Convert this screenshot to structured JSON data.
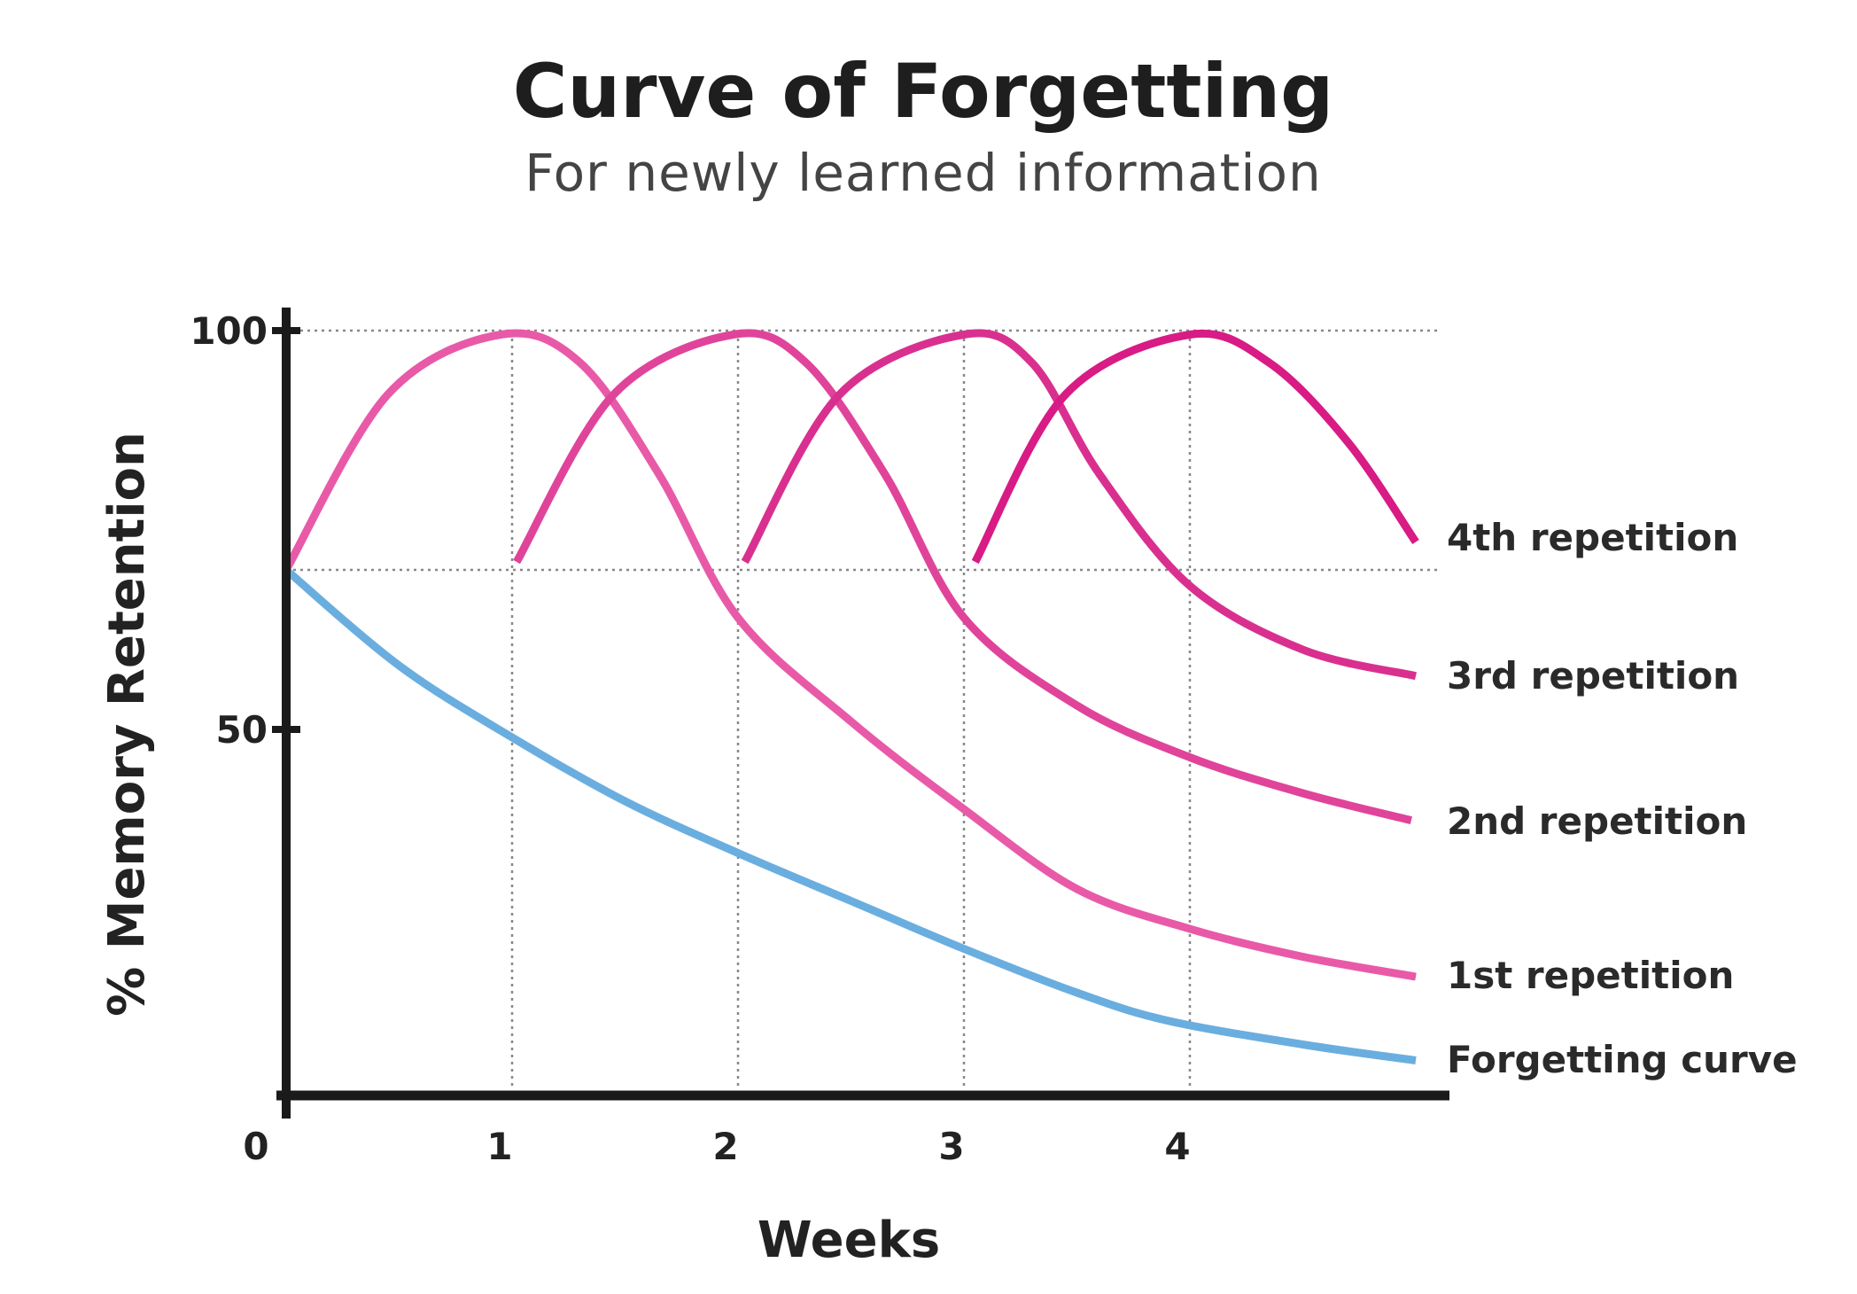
{
  "chart_data": {
    "type": "line",
    "title": "Curve of Forgetting",
    "subtitle": "For newly learned information",
    "xlabel": "Weeks",
    "ylabel": "% Memory Retention",
    "xlim": [
      0,
      5
    ],
    "ylim": [
      0,
      100
    ],
    "x_ticks": [
      "0",
      "1",
      "2",
      "3",
      "4"
    ],
    "y_ticks": [
      "100",
      "50"
    ],
    "grid": "dotted lines at 100 and 70 and at weeks 1-4",
    "legend": "labels at right end of each line",
    "series": [
      {
        "name": "Forgetting curve",
        "color": "#6aaee0",
        "points": [
          [
            0,
            70
          ],
          [
            0.5,
            58
          ],
          [
            1,
            49
          ],
          [
            1.5,
            41
          ],
          [
            2,
            34.5
          ],
          [
            2.5,
            28.5
          ],
          [
            3,
            22.5
          ],
          [
            3.5,
            17
          ],
          [
            3.9,
            13.5
          ],
          [
            4.5,
            10.5
          ],
          [
            5,
            8.5
          ]
        ]
      },
      {
        "name": "1st repetition",
        "color": "#e85aa8",
        "points": [
          [
            0,
            70
          ],
          [
            0.45,
            92
          ],
          [
            0.95,
            99.5
          ],
          [
            1.3,
            96
          ],
          [
            1.65,
            82
          ],
          [
            2,
            64
          ],
          [
            2.5,
            51
          ],
          [
            3,
            40
          ],
          [
            3.5,
            30
          ],
          [
            4,
            25
          ],
          [
            4.5,
            21.5
          ],
          [
            5,
            19
          ]
        ]
      },
      {
        "name": "2nd repetition",
        "color": "#e0449a",
        "points": [
          [
            1.02,
            71
          ],
          [
            1.45,
            92
          ],
          [
            1.98,
            99.5
          ],
          [
            2.3,
            96
          ],
          [
            2.65,
            82
          ],
          [
            3,
            64
          ],
          [
            3.5,
            53
          ],
          [
            4,
            46.5
          ],
          [
            4.5,
            42
          ],
          [
            4.98,
            38.6
          ]
        ]
      },
      {
        "name": "3rd repetition",
        "color": "#d93090",
        "points": [
          [
            2.03,
            71
          ],
          [
            2.45,
            92
          ],
          [
            3,
            99.5
          ],
          [
            3.3,
            96
          ],
          [
            3.6,
            82
          ],
          [
            4,
            68
          ],
          [
            4.5,
            60
          ],
          [
            5,
            56.7
          ]
        ]
      },
      {
        "name": "4th repetition",
        "color": "#d81b85",
        "points": [
          [
            3.05,
            71
          ],
          [
            3.45,
            92
          ],
          [
            4,
            99.5
          ],
          [
            4.35,
            96
          ],
          [
            4.7,
            86
          ],
          [
            5,
            73.5
          ]
        ]
      }
    ]
  }
}
